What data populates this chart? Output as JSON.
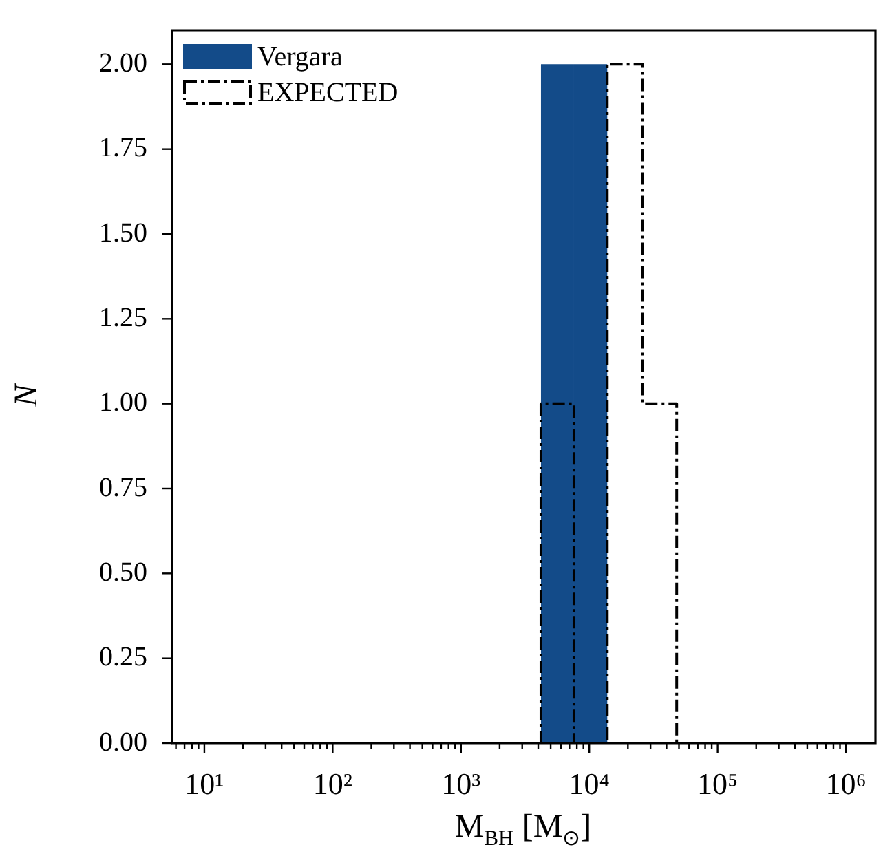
{
  "chart_data": {
    "type": "histogram",
    "xlabel": "M$_{BH}$ [M$_{⊙}$]",
    "ylabel": "N",
    "log": "x",
    "bins": [
      4200,
      7600,
      13800,
      26000,
      48000
    ],
    "series": [
      {
        "name": "Vergara",
        "type": "histogram",
        "color": "#134b89",
        "values": [
          2,
          2,
          0,
          0
        ]
      },
      {
        "name": "EXPECTED",
        "type": "histogram",
        "color": "#000000",
        "line_style": "dashed",
        "values": [
          1,
          0,
          2,
          1
        ]
      }
    ],
    "xlim": [
      5.6,
      1700000
    ],
    "xticks": [
      {
        "value": 6,
        "label": null
      },
      {
        "value": 7,
        "label": null
      },
      {
        "value": 8,
        "label": null
      },
      {
        "value": 9,
        "label": null
      },
      {
        "value": 10,
        "label": "10¹"
      },
      {
        "value": 20,
        "label": null
      },
      {
        "value": 30,
        "label": null
      },
      {
        "value": 40,
        "label": null
      },
      {
        "value": 50,
        "label": null
      },
      {
        "value": 60,
        "label": null
      },
      {
        "value": 70,
        "label": null
      },
      {
        "value": 80,
        "label": null
      },
      {
        "value": 90,
        "label": null
      },
      {
        "value": 100,
        "label": "10²"
      },
      {
        "value": 200,
        "label": null
      },
      {
        "value": 300,
        "label": null
      },
      {
        "value": 400,
        "label": null
      },
      {
        "value": 500,
        "label": null
      },
      {
        "value": 600,
        "label": null
      },
      {
        "value": 700,
        "label": null
      },
      {
        "value": 800,
        "label": null
      },
      {
        "value": 900,
        "label": null
      },
      {
        "value": 1000,
        "label": "10³"
      },
      {
        "value": 2000,
        "label": null
      },
      {
        "value": 3000,
        "label": null
      },
      {
        "value": 4000,
        "label": null
      },
      {
        "value": 5000,
        "label": null
      },
      {
        "value": 6000,
        "label": null
      },
      {
        "value": 7000,
        "label": null
      },
      {
        "value": 8000,
        "label": null
      },
      {
        "value": 9000,
        "label": null
      },
      {
        "value": 10000,
        "label": "10⁴"
      },
      {
        "value": 20000,
        "label": null
      },
      {
        "value": 30000,
        "label": null
      },
      {
        "value": 40000,
        "label": null
      },
      {
        "value": 50000,
        "label": null
      },
      {
        "value": 60000,
        "label": null
      },
      {
        "value": 70000,
        "label": null
      },
      {
        "value": 80000,
        "label": null
      },
      {
        "value": 90000,
        "label": null
      },
      {
        "value": 100000,
        "label": "10⁵"
      },
      {
        "value": 200000,
        "label": null
      },
      {
        "value": 300000,
        "label": null
      },
      {
        "value": 400000,
        "label": null
      },
      {
        "value": 500000,
        "label": null
      },
      {
        "value": 600000,
        "label": null
      },
      {
        "value": 700000,
        "label": null
      },
      {
        "value": 800000,
        "label": null
      },
      {
        "value": 900000,
        "label": null
      },
      {
        "value": 1000000,
        "label": "10⁶"
      }
    ],
    "ylim": [
      0,
      2.1
    ],
    "yticks": [
      {
        "value": 0,
        "label": "0.00"
      },
      {
        "value": 0.25,
        "label": "0.25"
      },
      {
        "value": 0.5,
        "label": "0.50"
      },
      {
        "value": 0.75,
        "label": "0.75"
      },
      {
        "value": 1,
        "label": "1.00"
      },
      {
        "value": 1.25,
        "label": "1.25"
      },
      {
        "value": 1.5,
        "label": "1.50"
      },
      {
        "value": 1.75,
        "label": "1.75"
      },
      {
        "value": 2,
        "label": "2.00"
      }
    ],
    "legend": "top left",
    "grid": false
  }
}
